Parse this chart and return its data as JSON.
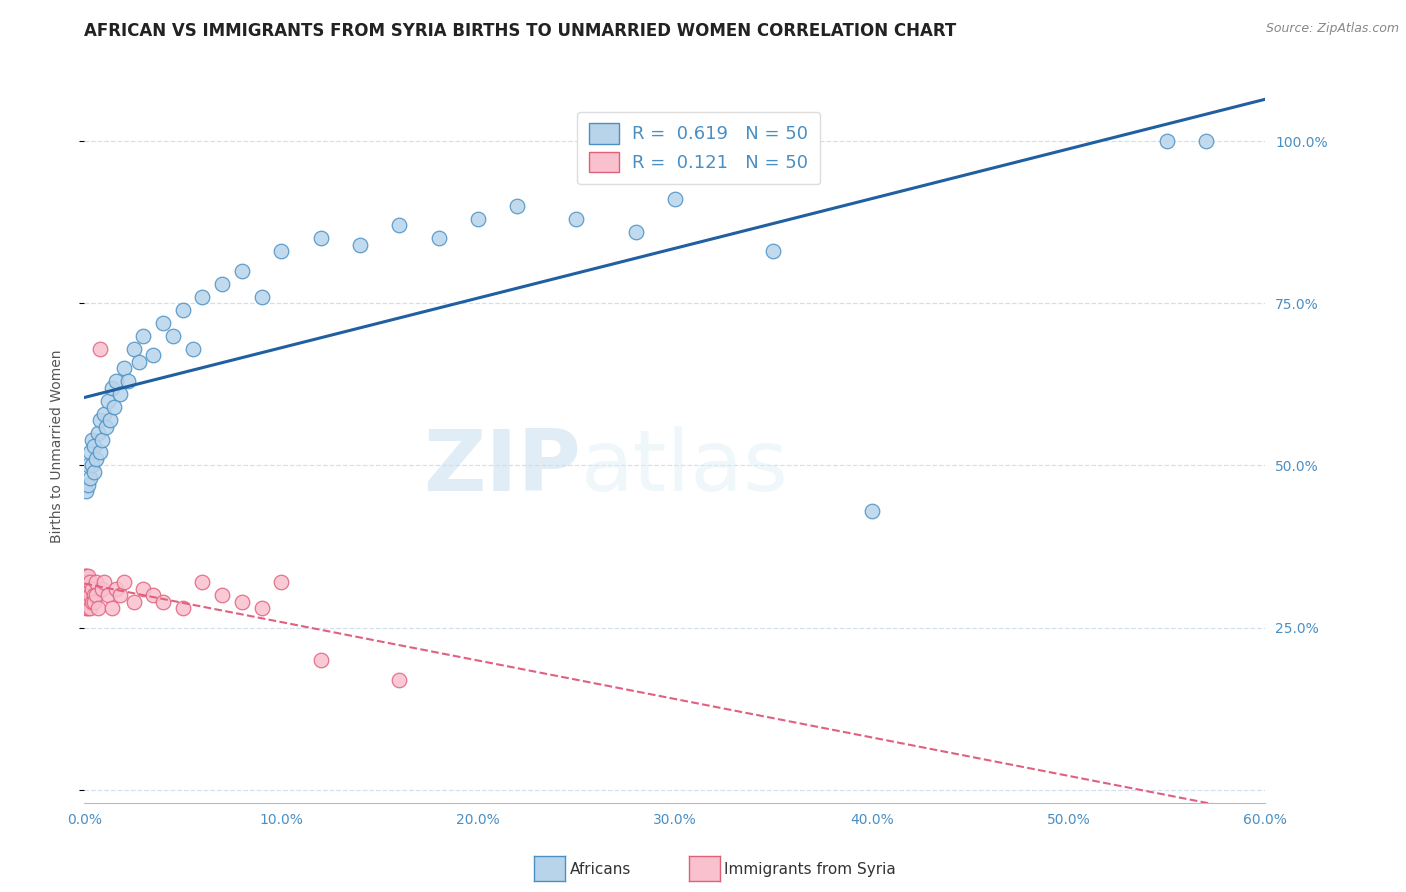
{
  "title": "AFRICAN VS IMMIGRANTS FROM SYRIA BIRTHS TO UNMARRIED WOMEN CORRELATION CHART",
  "source": "Source: ZipAtlas.com",
  "ylabel": "Births to Unmarried Women",
  "legend_entries": [
    {
      "label": "R =  0.619   N = 50",
      "color": "#b8d4ea"
    },
    {
      "label": "R =  0.121   N = 50",
      "color": "#f9c0ce"
    }
  ],
  "xlim": [
    0.0,
    0.6
  ],
  "ylim": [
    -0.02,
    1.08
  ],
  "africans_x": [
    0.001,
    0.002,
    0.002,
    0.003,
    0.003,
    0.004,
    0.004,
    0.005,
    0.005,
    0.006,
    0.007,
    0.008,
    0.008,
    0.009,
    0.01,
    0.011,
    0.012,
    0.013,
    0.014,
    0.015,
    0.016,
    0.018,
    0.02,
    0.022,
    0.025,
    0.028,
    0.03,
    0.035,
    0.04,
    0.045,
    0.05,
    0.055,
    0.06,
    0.07,
    0.08,
    0.09,
    0.1,
    0.12,
    0.14,
    0.16,
    0.18,
    0.2,
    0.22,
    0.25,
    0.28,
    0.3,
    0.35,
    0.4,
    0.55,
    0.57
  ],
  "africans_y": [
    0.46,
    0.47,
    0.5,
    0.48,
    0.52,
    0.5,
    0.54,
    0.49,
    0.53,
    0.51,
    0.55,
    0.52,
    0.57,
    0.54,
    0.58,
    0.56,
    0.6,
    0.57,
    0.62,
    0.59,
    0.63,
    0.61,
    0.65,
    0.63,
    0.68,
    0.66,
    0.7,
    0.67,
    0.72,
    0.7,
    0.74,
    0.68,
    0.76,
    0.78,
    0.8,
    0.76,
    0.83,
    0.85,
    0.84,
    0.87,
    0.85,
    0.88,
    0.9,
    0.88,
    0.86,
    0.91,
    0.83,
    0.43,
    1.0,
    1.0
  ],
  "syria_x": [
    0.0002,
    0.0003,
    0.0004,
    0.0005,
    0.0006,
    0.0007,
    0.0008,
    0.0009,
    0.001,
    0.001,
    0.0012,
    0.0013,
    0.0014,
    0.0015,
    0.0016,
    0.0017,
    0.0018,
    0.002,
    0.002,
    0.002,
    0.003,
    0.003,
    0.003,
    0.004,
    0.004,
    0.005,
    0.005,
    0.006,
    0.006,
    0.007,
    0.008,
    0.009,
    0.01,
    0.012,
    0.014,
    0.016,
    0.018,
    0.02,
    0.025,
    0.03,
    0.035,
    0.04,
    0.05,
    0.06,
    0.07,
    0.08,
    0.09,
    0.1,
    0.12,
    0.16
  ],
  "syria_y": [
    0.32,
    0.3,
    0.33,
    0.31,
    0.3,
    0.29,
    0.32,
    0.28,
    0.3,
    0.33,
    0.29,
    0.31,
    0.3,
    0.32,
    0.28,
    0.3,
    0.31,
    0.29,
    0.31,
    0.33,
    0.3,
    0.28,
    0.32,
    0.29,
    0.31,
    0.3,
    0.29,
    0.32,
    0.3,
    0.28,
    0.68,
    0.31,
    0.32,
    0.3,
    0.28,
    0.31,
    0.3,
    0.32,
    0.29,
    0.31,
    0.3,
    0.29,
    0.28,
    0.32,
    0.3,
    0.29,
    0.28,
    0.32,
    0.2,
    0.17
  ],
  "africans_color": "#b8d4ea",
  "syria_color": "#f9c0ce",
  "africans_edge_color": "#4a90c4",
  "syria_edge_color": "#e0607a",
  "trend_africans_color": "#2060a0",
  "trend_syria_color": "#e06080",
  "background_color": "#ffffff",
  "grid_color": "#c8d8e8",
  "title_color": "#222222",
  "axis_color": "#4a8fc4",
  "watermark_zip": "ZIP",
  "watermark_atlas": "atlas",
  "title_fontsize": 12,
  "axis_label_fontsize": 10,
  "tick_fontsize": 10,
  "source_fontsize": 9
}
